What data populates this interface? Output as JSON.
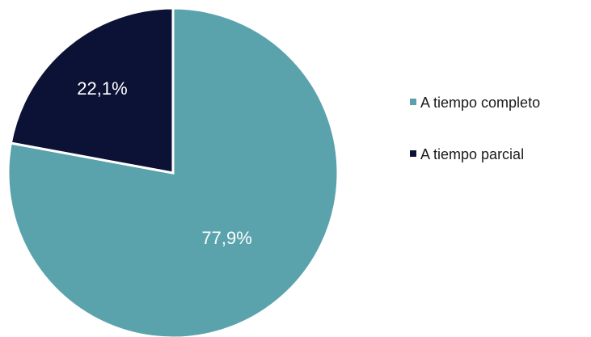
{
  "chart_data": {
    "type": "pie",
    "slices": [
      {
        "name": "A tiempo completo",
        "value": 77.9,
        "label": "77,9%",
        "color": "#5ba3ac"
      },
      {
        "name": "A tiempo parcial",
        "value": 22.1,
        "label": "22,1%",
        "color": "#0c1235"
      }
    ],
    "start": "12 o'clock",
    "direction": "clockwise",
    "legend": "right",
    "slice_border_color": "#ffffff"
  }
}
